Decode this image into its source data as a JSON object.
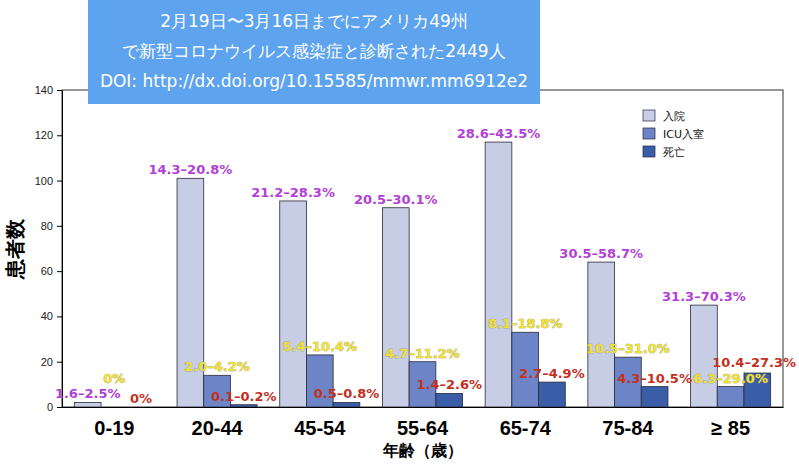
{
  "chart_data": {
    "type": "bar",
    "title": [
      "2月19日〜3月16日までにアメリカ49州",
      "で新型コロナウイルス感染症と診断された2449人",
      "DOI: http://dx.doi.org/10.15585/mmwr.mm6912e2"
    ],
    "x_label": "年齢（歳）",
    "y_label": "患者数",
    "categories": [
      "0-19",
      "20-44",
      "45-54",
      "55-64",
      "65-74",
      "75-84",
      "≥ 85"
    ],
    "series": [
      {
        "name": "入院",
        "color": "#c7cde5",
        "values": [
          2,
          101,
          91,
          88,
          117,
          64,
          45
        ],
        "annotations": [
          "1.6–2.5%",
          "14.3–20.8%",
          "21.2–28.3%",
          "20.5–30.1%",
          "28.6–43.5%",
          "30.5–58.7%",
          "31.3–70.3%"
        ]
      },
      {
        "name": "ICU入室",
        "color": "#6d84c6",
        "values": [
          0,
          14,
          23,
          20,
          33,
          22,
          9
        ],
        "annotations": [
          "0%",
          "2.0–4.2%",
          "5.4–10.4%",
          "4.7–11.2%",
          "8.1–18.8%",
          "10.5–31.0%",
          "6.3–29.0%"
        ]
      },
      {
        "name": "死亡",
        "color": "#3a5da8",
        "values": [
          0,
          1,
          2,
          6,
          11,
          9,
          15
        ],
        "annotations": [
          "0%",
          "0.1–0.2%",
          "0.5–0.8%",
          "1.4–2.6%",
          "2.7–4.9%",
          "4.3–10.5%",
          "10.4–27.3%"
        ]
      }
    ],
    "ylim": [
      0,
      140
    ],
    "yticks": [
      0,
      20,
      40,
      60,
      80,
      100,
      120,
      140
    ],
    "legend": "upper right",
    "grid": false
  }
}
